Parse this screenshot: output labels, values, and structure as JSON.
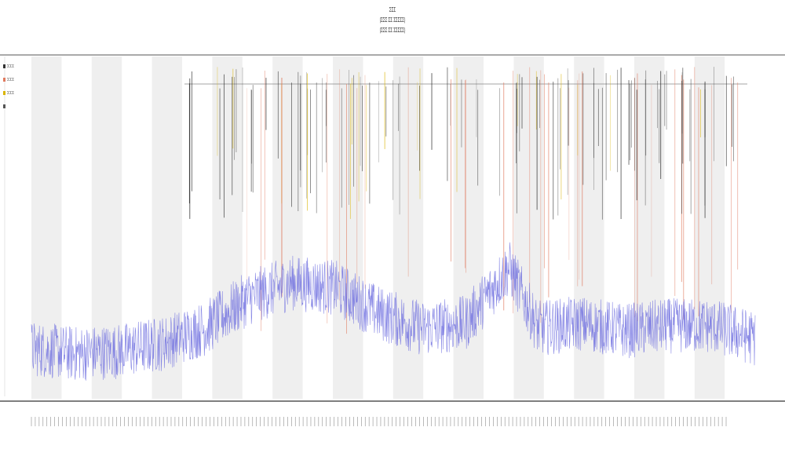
{
  "chart_data": {
    "type": "line",
    "title_lines": [
      "ΣΣΣ",
      "(ΣΣΣ ΣΣ ΣΣΣΣΣ)",
      "(ΣΣΣ ΣΣ ΣΣΣΣΣ)"
    ],
    "legend": [
      {
        "label": "ΣΣΣ",
        "color": "#333333"
      },
      {
        "label": "ΣΣΣ",
        "color": "#e07a5f"
      },
      {
        "label": "ΣΣΣ",
        "color": "#d9b400"
      },
      {
        "label": "",
        "color": "#555555"
      }
    ],
    "series": [
      {
        "name": "",
        "color": "#6a6adf",
        "baseline_profile": [
          [
            0,
            0.08
          ],
          [
            6,
            0.06
          ],
          [
            12,
            0.07
          ],
          [
            18,
            0.1
          ],
          [
            24,
            0.16
          ],
          [
            30,
            0.28
          ],
          [
            36,
            0.34
          ],
          [
            42,
            0.32
          ],
          [
            48,
            0.22
          ],
          [
            54,
            0.16
          ],
          [
            60,
            0.18
          ],
          [
            66,
            0.4
          ],
          [
            70,
            0.16
          ],
          [
            76,
            0.18
          ],
          [
            82,
            0.15
          ],
          [
            88,
            0.17
          ],
          [
            94,
            0.17
          ],
          [
            100,
            0.12
          ]
        ]
      }
    ],
    "vertical_event_lines": [
      {
        "color": "#e07a5f"
      },
      {
        "color": "#222222"
      },
      {
        "color": "#d9b400"
      }
    ],
    "x_tick_count": 180,
    "background_bands": {
      "alternating": true,
      "color": "#efefef"
    },
    "grid": false,
    "xlabel": "",
    "ylabel": ""
  }
}
